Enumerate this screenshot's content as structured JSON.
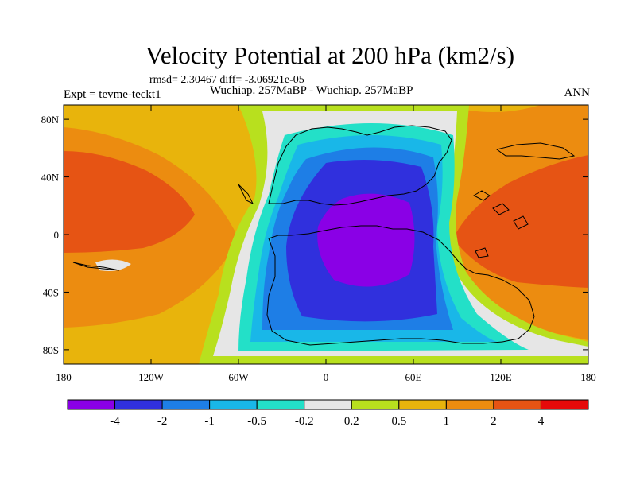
{
  "chart_data": {
    "type": "heatmap",
    "title": "Velocity Potential at 200 hPa (km2/s)",
    "stats": "rmsd= 2.30467  diff= -3.06921e-05",
    "subtitle": "Wuchiap. 257MaBP - Wuchiap. 257MaBP",
    "left_label": "Expt = tevme-teckt1",
    "right_label": "ANN",
    "x_axis": {
      "range": [
        -180,
        180
      ],
      "ticks": [
        {
          "v": -180,
          "label": "180"
        },
        {
          "v": -120,
          "label": "120W"
        },
        {
          "v": -60,
          "label": "60W"
        },
        {
          "v": 0,
          "label": "0"
        },
        {
          "v": 60,
          "label": "60E"
        },
        {
          "v": 120,
          "label": "120E"
        },
        {
          "v": 180,
          "label": "180"
        }
      ]
    },
    "y_axis": {
      "range": [
        -90,
        90
      ],
      "ticks": [
        {
          "v": 80,
          "label": "80N"
        },
        {
          "v": 40,
          "label": "40N"
        },
        {
          "v": 0,
          "label": "0"
        },
        {
          "v": -40,
          "label": "40S"
        },
        {
          "v": -80,
          "label": "80S"
        }
      ]
    },
    "colorbar": {
      "levels": [
        "-4",
        "-2",
        "-1",
        "-0.5",
        "-0.2",
        "0.2",
        "0.5",
        "1",
        "2",
        "4"
      ],
      "colors": [
        "#8a00e6",
        "#3030dd",
        "#1e7ee6",
        "#19b7e8",
        "#23e0c8",
        "#e6e6e6",
        "#b8e01e",
        "#e8b40c",
        "#ec8c10",
        "#e65414",
        "#e60a0a"
      ]
    },
    "field": {
      "description_units": "km2/s",
      "minimum": {
        "lon": 20,
        "lat": 0,
        "value": -4.5
      },
      "maximum_east": {
        "lon": 160,
        "lat": 30,
        "value": 3.5
      },
      "maximum_west": {
        "lon": -170,
        "lat": 20,
        "value": 3.2
      }
    }
  }
}
